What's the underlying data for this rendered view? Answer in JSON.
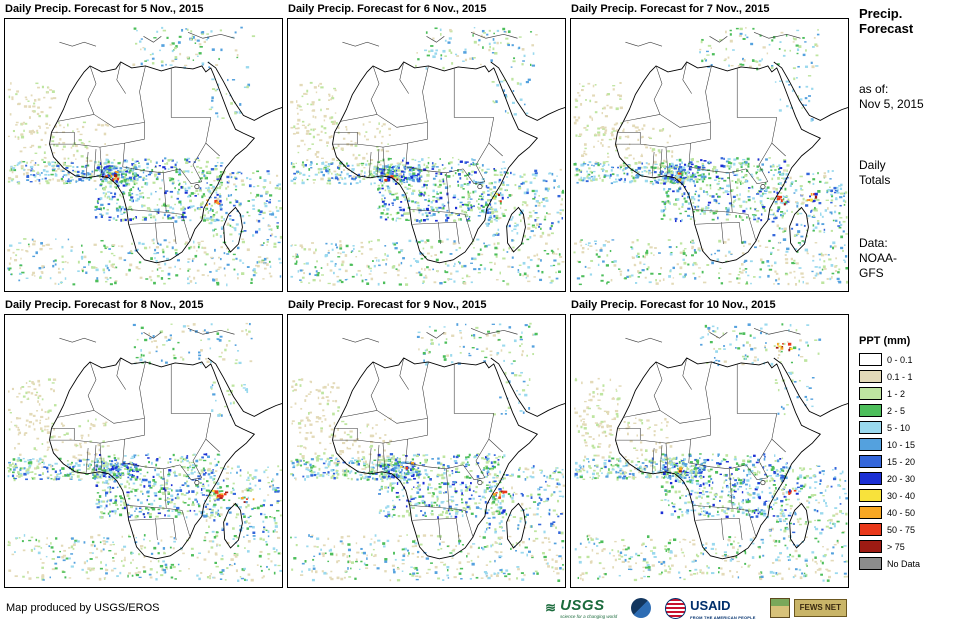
{
  "panels": [
    "Daily Precip. Forecast for 5 Nov., 2015",
    "Daily Precip. Forecast for 6 Nov., 2015",
    "Daily Precip. Forecast for 7 Nov., 2015",
    "Daily Precip. Forecast for 8 Nov., 2015",
    "Daily Precip. Forecast for 9 Nov., 2015",
    "Daily Precip. Forecast for 10 Nov., 2015"
  ],
  "sidebar": {
    "title_line1": "Precip.",
    "title_line2": "Forecast",
    "as_of_label": "as of:",
    "as_of_value": "Nov 5, 2015",
    "totals_line1": "Daily",
    "totals_line2": "Totals",
    "data_label": "Data:",
    "data_value1": "NOAA-",
    "data_value2": "GFS"
  },
  "legend": {
    "title": "PPT (mm)",
    "items": [
      {
        "label": "0 - 0.1",
        "color": "#FFFFFF"
      },
      {
        "label": "0.1 - 1",
        "color": "#E3DAB8"
      },
      {
        "label": "1 - 2",
        "color": "#BEE5A0"
      },
      {
        "label": "2 - 5",
        "color": "#4DBE5B"
      },
      {
        "label": "5 - 10",
        "color": "#9AD9EE"
      },
      {
        "label": "10 - 15",
        "color": "#54A1DE"
      },
      {
        "label": "15 - 20",
        "color": "#3366DB"
      },
      {
        "label": "20 - 30",
        "color": "#1B2FD4"
      },
      {
        "label": "30 - 40",
        "color": "#F8E23B"
      },
      {
        "label": "40 - 50",
        "color": "#F7A723"
      },
      {
        "label": "50 - 75",
        "color": "#E9381A"
      },
      {
        "label": "> 75",
        "color": "#9E1B13"
      },
      {
        "label": "No Data",
        "color": "#8C8C8C"
      }
    ]
  },
  "footer": {
    "credit": "Map produced by USGS/EROS",
    "usgs_text": "USGS",
    "usgs_tagline": "science for a changing world",
    "usaid_text": "USAID",
    "usaid_tagline": "FROM THE AMERICAN PEOPLE",
    "fewsnet_text": "FEWS NET"
  }
}
